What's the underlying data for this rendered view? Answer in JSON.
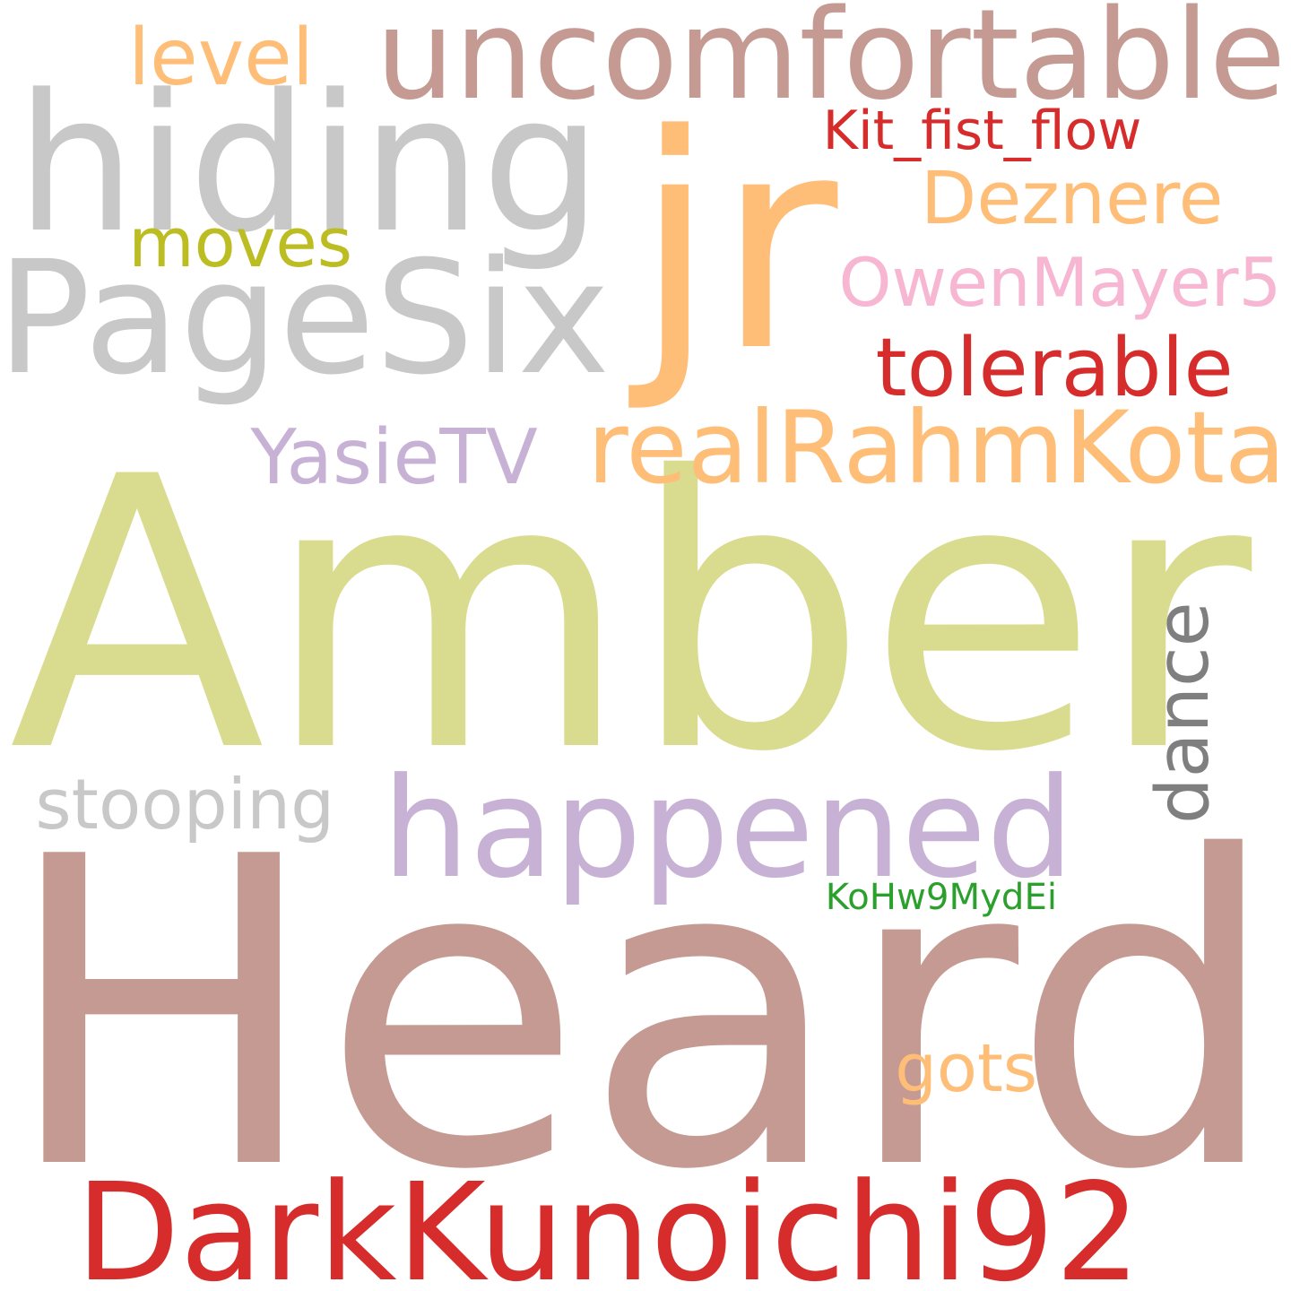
{
  "words": [
    {
      "text": "Heard",
      "color": "#c49a92"
    },
    {
      "text": "Amber",
      "color": "#d9dc8f"
    },
    {
      "text": "jr",
      "color": "#ffbe78"
    },
    {
      "text": "hiding",
      "color": "#c8c8c8"
    },
    {
      "text": "PageSix",
      "color": "#c8c8c8"
    },
    {
      "text": "uncomfortable",
      "color": "#c49a92"
    },
    {
      "text": "happened",
      "color": "#c7b2d6"
    },
    {
      "text": "DarkKunoichi92",
      "color": "#d62c2c"
    },
    {
      "text": "realRahmKota",
      "color": "#ffbe78"
    },
    {
      "text": "Kit_fist_flow",
      "color": "#d62c2c"
    },
    {
      "text": "OwenMayer5",
      "color": "#f7b6d2"
    },
    {
      "text": "tolerable",
      "color": "#d62c2c"
    },
    {
      "text": "Deznere",
      "color": "#ffbe78"
    },
    {
      "text": "dance",
      "color": "#7f7f7f"
    },
    {
      "text": "stooping",
      "color": "#c8c8c8"
    },
    {
      "text": "YasieTV",
      "color": "#c7b2d6"
    },
    {
      "text": "level",
      "color": "#ffbe78"
    },
    {
      "text": "moves",
      "color": "#bcbd22"
    },
    {
      "text": "gots",
      "color": "#ffbe78"
    },
    {
      "text": "KoHw9MydEi",
      "color": "#2ca02c"
    }
  ]
}
